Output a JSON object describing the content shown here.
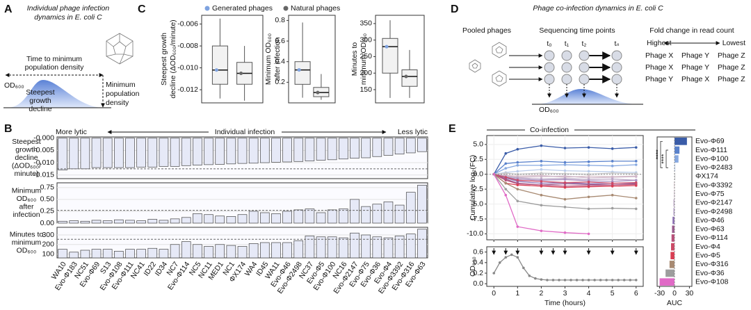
{
  "panel_labels": [
    "A",
    "B",
    "C",
    "D",
    "E"
  ],
  "diagram_a": {
    "title": [
      "Individual phage infection",
      "dynamics in E. coli C"
    ],
    "time_label": [
      "Time to minimum",
      "population density"
    ],
    "min_label": [
      "Minimum",
      "population",
      "density"
    ],
    "od_label": "OD₆₀₀",
    "decline_label": [
      "Steepest",
      "growth",
      "decline"
    ]
  },
  "diagram_d": {
    "title": "Phage co-infection dynamics in E. coli C",
    "pooled": "Pooled phages",
    "sequencing": "Sequencing time points",
    "fold": "Fold change in read count",
    "highest": "Highest",
    "lowest": "Lowest",
    "time_points": [
      "t₀",
      "t₁",
      "t₂",
      "tₙ"
    ],
    "ranking": [
      [
        "Phage X",
        "Phage Y",
        "Phage Z"
      ],
      [
        "Phage X",
        "Phage Y",
        "Phage Z"
      ],
      [
        "Phage Y",
        "Phage X",
        "Phage Z"
      ]
    ],
    "od_label": "OD₆₀₀"
  },
  "chart_data": [
    {
      "type": "box",
      "ylabel": [
        "Steepest growth",
        "decline (ΔOD₆₀₀/minute)"
      ],
      "ylim": [
        -0.0132,
        -0.0052
      ],
      "yticks": [
        -0.006,
        -0.008,
        {
          "value": -0.01,
          "label": "-0.010"
        },
        -0.012
      ],
      "series": [
        {
          "name": "Generated phages",
          "color": "#7fa3e0",
          "stats": {
            "min": -0.0128,
            "q1": -0.0115,
            "median": -0.0102,
            "q3": -0.008,
            "max": -0.0055
          }
        },
        {
          "name": "Natural phages",
          "color": "#666666",
          "stats": {
            "min": -0.013,
            "q1": -0.0115,
            "median": -0.0105,
            "q3": -0.0095,
            "max": -0.008
          }
        }
      ]
    },
    {
      "type": "box",
      "ylabel": [
        "Minimum OD₆₀₀",
        "after infection"
      ],
      "ylim": [
        0,
        0.85
      ],
      "yticks": [
        0.2,
        0.4,
        0.6,
        0.8
      ],
      "series": [
        {
          "color": "#7fa3e0",
          "stats": {
            "min": 0.05,
            "q1": 0.18,
            "median": 0.32,
            "q3": 0.4,
            "max": 0.78
          }
        },
        {
          "color": "#666666",
          "stats": {
            "min": 0.03,
            "q1": 0.06,
            "median": 0.1,
            "q3": 0.15,
            "max": 0.28
          }
        }
      ]
    },
    {
      "type": "box",
      "ylabel": [
        "Minutes to",
        "minimum OD₆₀₀"
      ],
      "ylim": [
        110,
        375
      ],
      "yticks": [
        150,
        200,
        250,
        300,
        350
      ],
      "series": [
        {
          "color": "#7fa3e0",
          "stats": {
            "min": 125,
            "q1": 200,
            "median": 280,
            "q3": 305,
            "max": 360
          }
        },
        {
          "color": "#666666",
          "stats": {
            "min": 125,
            "q1": 160,
            "median": 190,
            "q3": 210,
            "max": 270
          }
        }
      ]
    },
    {
      "type": "bar",
      "header": [
        "More lytic",
        "Individual infection",
        "Less lytic"
      ],
      "ylabel": [
        "Steepest",
        "growth",
        "decline",
        "(ΔOD₆₀₀/",
        "minute)"
      ],
      "ylim": [
        -0.0165,
        0.0005
      ],
      "yticks": [
        {
          "value": 0,
          "label": "-0.000"
        },
        -0.005,
        {
          "value": -0.01,
          "label": "-0.010"
        },
        -0.015
      ],
      "reference": -0.0125,
      "color": "#e6e9f7",
      "values": [
        -0.013,
        -0.0125,
        -0.0125,
        -0.012,
        -0.012,
        -0.012,
        -0.012,
        -0.0118,
        -0.0118,
        -0.0115,
        -0.0115,
        -0.0112,
        -0.011,
        -0.0108,
        -0.0107,
        -0.0105,
        -0.0103,
        -0.0102,
        -0.01,
        -0.0098,
        -0.0097,
        -0.0095,
        -0.0093,
        -0.009,
        -0.0088,
        -0.0085,
        -0.0082,
        -0.008,
        -0.0075,
        -0.007,
        -0.0065,
        -0.006,
        -0.0055
      ]
    },
    {
      "type": "bar",
      "ylabel": [
        "Minimum",
        "OD₆₀₀",
        "after",
        "infection"
      ],
      "ylim": [
        0,
        0.85
      ],
      "yticks": [
        {
          "value": 0,
          "label": "0.00"
        },
        0.25,
        {
          "value": 0.5,
          "label": "0.50"
        },
        0.75
      ],
      "reference": 0.27,
      "color": "#e6e9f7",
      "values": [
        0.04,
        0.05,
        0.04,
        0.06,
        0.05,
        0.07,
        0.06,
        0.05,
        0.08,
        0.06,
        0.09,
        0.12,
        0.2,
        0.18,
        0.15,
        0.14,
        0.18,
        0.25,
        0.22,
        0.2,
        0.25,
        0.28,
        0.3,
        0.22,
        0.28,
        0.3,
        0.5,
        0.35,
        0.4,
        0.45,
        0.38,
        0.65,
        0.8
      ]
    },
    {
      "type": "bar",
      "ylabel": [
        "Minutes to",
        "minimum",
        "OD₆₀₀"
      ],
      "ylim": [
        60,
        380
      ],
      "yticks": [
        100,
        200,
        300
      ],
      "reference": 255,
      "color": "#e6e9f7",
      "categories": [
        "WA10",
        "Evo-Φ183",
        "NC51",
        "Evo-Φ69",
        "S13",
        "Evo-Φ108",
        "Evo-Φ111",
        "NC41",
        "ID22",
        "ID34",
        "NC7",
        "Evo-Φ114",
        "NC5",
        "NC11",
        "MED1",
        "NC1",
        "ΦX174",
        "WA4",
        "ID45",
        "WA11",
        "Evo-Φ46",
        "Evo-Φ2498",
        "NC37",
        "Evo-Φ5",
        "Evo-Φ100",
        "NC16",
        "Evo-Φ2147",
        "Evo-Φ75",
        "Evo-Φ36",
        "Evo-Φ4",
        "Evo-Φ3392",
        "Evo-Φ316",
        "Evo-Φ63"
      ],
      "values": [
        150,
        120,
        140,
        150,
        150,
        130,
        150,
        150,
        160,
        150,
        200,
        230,
        200,
        180,
        200,
        190,
        180,
        210,
        220,
        220,
        220,
        240,
        290,
        280,
        280,
        270,
        320,
        300,
        280,
        270,
        290,
        310,
        360
      ]
    },
    {
      "type": "line",
      "title": "Co-infection",
      "ylabel": "Cumulative log₂(FC)",
      "grid": true,
      "xlim": [
        -0.3,
        6.3
      ],
      "xticks": [
        0,
        1,
        2,
        3,
        4,
        5,
        6
      ],
      "ylim": [
        -11,
        6.5
      ],
      "yticks": [
        {
          "value": -10,
          "label": "-10.0"
        },
        -7.5,
        {
          "value": -5,
          "label": "-5.0"
        },
        -2.5,
        {
          "value": 0,
          "label": "0.0"
        },
        2.5,
        {
          "value": 5,
          "label": "5.0"
        }
      ],
      "x": [
        0,
        0.5,
        1,
        2,
        3,
        4,
        5,
        6
      ],
      "auc_xlabel": "AUC",
      "auc_xlim": [
        -35,
        35
      ],
      "auc_xticks": [
        -30,
        0,
        30
      ],
      "annotations": [
        "****",
        "****"
      ],
      "series": [
        {
          "name": "Evo-Φ69",
          "color": "#3a5ca8",
          "values": [
            0,
            3.5,
            4.2,
            4.8,
            4.4,
            4.5,
            4.3,
            4.5
          ],
          "auc": 25
        },
        {
          "name": "Evo-Φ111",
          "color": "#5a82cc",
          "values": [
            0,
            1.8,
            2,
            2.2,
            2,
            2.1,
            2.2,
            2.2
          ],
          "auc": 10
        },
        {
          "name": "Evo-Φ100",
          "color": "#86a8e0",
          "values": [
            0,
            1,
            1.5,
            1.5,
            1.6,
            1.5,
            1.4,
            1.6
          ],
          "auc": 8
        },
        {
          "name": "Evo-Φ2483",
          "color": "#b9cbe9",
          "values": [
            0,
            0.3,
            0.5,
            0.8,
            0.6,
            0.5,
            0.4,
            0.3
          ],
          "auc": 1
        },
        {
          "name": "ΦX174",
          "color": "#c9c9c9",
          "values": [
            0,
            0.2,
            0,
            0.2,
            0.1,
            0,
            0.2,
            0.1
          ],
          "auc": 0
        },
        {
          "name": "Evo-Φ3392",
          "color": "#d9c2cb",
          "values": [
            0,
            -0.2,
            -0.3,
            -0.2,
            -0.5,
            -0.3,
            -0.4,
            -0.3
          ],
          "auc": -1
        },
        {
          "name": "Evo-Φ75",
          "color": "#cdb4c8",
          "values": [
            0,
            -0.3,
            -0.5,
            -0.4,
            -0.3,
            -0.6,
            -0.5,
            -0.4
          ],
          "auc": -1
        },
        {
          "name": "Evo-Φ2147",
          "color": "#bba7c6",
          "values": [
            0,
            -0.4,
            -0.6,
            -0.8,
            -0.7,
            -0.9,
            -0.8,
            -1
          ],
          "auc": -2
        },
        {
          "name": "Evo-Φ2498",
          "color": "#a992c0",
          "values": [
            0,
            -0.5,
            -0.8,
            -1,
            -0.9,
            -1.1,
            -1.2,
            -1
          ],
          "auc": -2
        },
        {
          "name": "Evo-Φ46",
          "color": "#8e73b5",
          "values": [
            0,
            -0.6,
            -1.2,
            -1.5,
            -1.4,
            -1.6,
            -1.5,
            -1.5
          ],
          "auc": -4
        },
        {
          "name": "Evo-Φ63",
          "color": "#9b5c8e",
          "values": [
            0,
            -0.8,
            -1.5,
            -1.8,
            -1.6,
            -1.7,
            -1.8,
            -1.6
          ],
          "auc": -5
        },
        {
          "name": "Evo-Φ114",
          "color": "#b8507a",
          "values": [
            0,
            -1,
            -1.6,
            -1.8,
            -2,
            -1.9,
            -1.8,
            -1.7
          ],
          "auc": -6
        },
        {
          "name": "Evo-Φ4",
          "color": "#cc4a66",
          "values": [
            0,
            -0.5,
            -1,
            -1.2,
            -1.4,
            -1.3,
            -1.5,
            -1.4
          ],
          "auc": -7
        },
        {
          "name": "Evo-Φ5",
          "color": "#d93d52",
          "values": [
            0,
            -1.5,
            -1.8,
            -2,
            -2.2,
            -2.1,
            -2,
            -1.9
          ],
          "auc": -8
        },
        {
          "name": "Evo-Φ316",
          "color": "#a88a72",
          "values": [
            0,
            -1.5,
            -2.5,
            -3.5,
            -4.2,
            -3.8,
            -3.5,
            -4
          ],
          "auc": -10
        },
        {
          "name": "Evo-Φ36",
          "color": "#9d9d9d",
          "values": [
            0,
            -2.5,
            -4.5,
            -5.2,
            -5.5,
            -5.8,
            -5.7,
            -5.8
          ],
          "auc": -18
        },
        {
          "name": "Evo-Φ108",
          "color": "#e06ac6",
          "values": [
            0,
            -3.5,
            -8.8,
            -9.5,
            -9.8,
            -10,
            null,
            null
          ],
          "auc": -30
        }
      ]
    },
    {
      "type": "line",
      "ylabel": "OD₆₀₀",
      "xlabel": "Time (hours)",
      "color": "#888888",
      "xlim": [
        -0.3,
        6.3
      ],
      "xticks": [
        0,
        1,
        2,
        3,
        4,
        5,
        6
      ],
      "ylim": [
        -0.05,
        0.7
      ],
      "yticks": [
        {
          "value": 0,
          "label": "0.0"
        },
        0.2,
        0.4,
        0.6
      ],
      "x": [
        0,
        0.25,
        0.5,
        0.75,
        1,
        1.25,
        1.5,
        1.75,
        2,
        2.25,
        2.5,
        2.75,
        3,
        3.25,
        3.5,
        3.75,
        4,
        4.25,
        4.5,
        4.75,
        5,
        5.25,
        5.5,
        5.75,
        6
      ],
      "values": [
        0.2,
        0.4,
        0.5,
        0.55,
        0.5,
        0.3,
        0.15,
        0.1,
        0.08,
        0.07,
        0.07,
        0.07,
        0.07,
        0.07,
        0.07,
        0.07,
        0.07,
        0.07,
        0.07,
        0.07,
        0.07,
        0.07,
        0.07,
        0.07,
        0.07
      ],
      "sample_times": [
        0,
        0.5,
        1,
        2,
        2.5,
        3,
        4,
        5,
        6
      ]
    }
  ]
}
